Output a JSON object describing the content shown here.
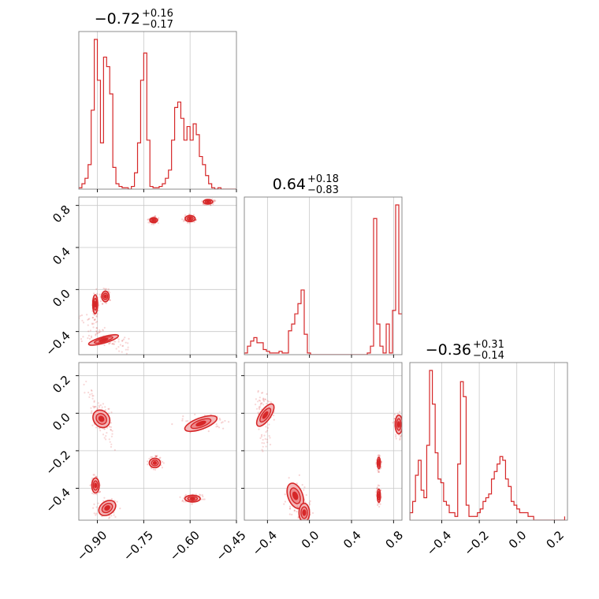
{
  "chart_data": {
    "type": "corner",
    "colors": {
      "line": "#d62728",
      "fill": "#f4b6b8",
      "grid": "#c8c8c8",
      "frame": "#808080"
    },
    "grid": true,
    "titles": [
      {
        "main": "−0.72",
        "sup": "+0.16",
        "sub": "−0.17"
      },
      {
        "main": "0.64",
        "sup": "+0.18",
        "sub": "−0.83"
      },
      {
        "main": "−0.36",
        "sup": "+0.31",
        "sub": "−0.14"
      }
    ],
    "axes": [
      {
        "range": [
          -0.96,
          -0.45
        ],
        "ticks": [
          -0.9,
          -0.75,
          -0.6,
          -0.45
        ],
        "tick_labels": [
          "−0.90",
          "−0.75",
          "−0.60",
          "−0.45"
        ]
      },
      {
        "range": [
          -0.62,
          0.88
        ],
        "ticks": [
          -0.4,
          0.0,
          0.4,
          0.8
        ],
        "tick_labels": [
          "−0.4",
          "0.0",
          "0.4",
          "0.8"
        ]
      },
      {
        "range": [
          -0.57,
          0.27
        ],
        "ticks": [
          -0.4,
          -0.2,
          0.0,
          0.2
        ],
        "tick_labels": [
          "−0.4",
          "−0.2",
          "0.0",
          "0.2"
        ]
      }
    ],
    "histograms": [
      {
        "var": 0,
        "edges": [
          -0.96,
          -0.95,
          -0.94,
          -0.93,
          -0.92,
          -0.91,
          -0.9,
          -0.89,
          -0.88,
          -0.87,
          -0.86,
          -0.85,
          -0.84,
          -0.83,
          -0.82,
          -0.81,
          -0.8,
          -0.79,
          -0.78,
          -0.77,
          -0.76,
          -0.75,
          -0.74,
          -0.73,
          -0.72,
          -0.71,
          -0.7,
          -0.69,
          -0.68,
          -0.67,
          -0.66,
          -0.65,
          -0.64,
          -0.63,
          -0.62,
          -0.61,
          -0.6,
          -0.59,
          -0.58,
          -0.57,
          -0.56,
          -0.55,
          -0.54,
          -0.53,
          -0.52,
          -0.51,
          -0.5,
          -0.49,
          -0.48,
          -0.47,
          -0.46,
          -0.45
        ],
        "counts": [
          1,
          4,
          8,
          18,
          58,
          110,
          80,
          34,
          97,
          90,
          70,
          16,
          4,
          2,
          1,
          1,
          0,
          2,
          12,
          34,
          80,
          100,
          36,
          2,
          1,
          1,
          2,
          4,
          8,
          14,
          36,
          60,
          64,
          52,
          36,
          46,
          36,
          48,
          40,
          24,
          18,
          10,
          4,
          1,
          0,
          1,
          0,
          0,
          0,
          0,
          0
        ]
      },
      {
        "var": 1,
        "edges": [
          -0.62,
          -0.59,
          -0.56,
          -0.53,
          -0.5,
          -0.47,
          -0.44,
          -0.41,
          -0.38,
          -0.35,
          -0.32,
          -0.29,
          -0.26,
          -0.23,
          -0.2,
          -0.17,
          -0.14,
          -0.11,
          -0.08,
          -0.05,
          -0.02,
          0.01,
          0.04,
          0.07,
          0.1,
          0.13,
          0.16,
          0.19,
          0.22,
          0.25,
          0.28,
          0.31,
          0.34,
          0.37,
          0.4,
          0.43,
          0.46,
          0.49,
          0.52,
          0.55,
          0.58,
          0.61,
          0.64,
          0.67,
          0.7,
          0.73,
          0.76,
          0.79,
          0.82,
          0.85,
          0.88
        ],
        "counts": [
          1,
          5,
          8,
          10,
          7,
          7,
          3,
          2,
          1,
          1,
          1,
          2,
          1,
          1,
          14,
          18,
          24,
          30,
          38,
          12,
          1,
          0,
          0,
          0,
          0,
          0,
          0,
          0,
          0,
          0,
          0,
          0,
          0,
          0,
          0,
          0,
          0,
          0,
          0,
          1,
          5,
          80,
          18,
          5,
          1,
          18,
          1,
          26,
          88,
          24
        ]
      },
      {
        "var": 2,
        "edges": [
          -0.57,
          -0.555,
          -0.54,
          -0.525,
          -0.51,
          -0.495,
          -0.48,
          -0.465,
          -0.45,
          -0.435,
          -0.42,
          -0.405,
          -0.39,
          -0.375,
          -0.36,
          -0.345,
          -0.33,
          -0.315,
          -0.3,
          -0.285,
          -0.27,
          -0.255,
          -0.24,
          -0.225,
          -0.21,
          -0.195,
          -0.18,
          -0.165,
          -0.15,
          -0.135,
          -0.12,
          -0.105,
          -0.09,
          -0.075,
          -0.06,
          -0.045,
          -0.03,
          -0.015,
          0.0,
          0.015,
          0.03,
          0.045,
          0.06,
          0.075,
          0.09,
          0.105,
          0.12,
          0.135,
          0.15,
          0.165,
          0.18,
          0.195,
          0.21,
          0.225,
          0.24,
          0.255
        ],
        "counts": [
          2,
          5,
          12,
          16,
          8,
          6,
          20,
          40,
          31,
          18,
          11,
          10,
          5,
          4,
          2,
          2,
          1,
          15,
          37,
          33,
          4,
          1,
          1,
          1,
          2,
          3,
          5,
          6,
          7,
          11,
          13,
          15,
          17,
          16,
          11,
          9,
          5,
          4,
          3,
          2,
          2,
          2,
          1,
          1,
          0,
          0,
          0,
          0,
          0,
          0,
          0,
          0,
          0,
          0,
          0,
          1
        ]
      }
    ],
    "scatter_panels": [
      {
        "x_var": 0,
        "y_var": 1,
        "clusters": [
          {
            "x": -0.907,
            "y": -0.14,
            "rx": 0.008,
            "ry": 0.09,
            "rot": 0
          },
          {
            "x": -0.874,
            "y": -0.066,
            "rx": 0.012,
            "ry": 0.05,
            "rot": 0
          },
          {
            "x": -0.718,
            "y": 0.66,
            "rx": 0.012,
            "ry": 0.025,
            "rot": 0
          },
          {
            "x": -0.6,
            "y": 0.675,
            "rx": 0.016,
            "ry": 0.03,
            "rot": 0
          },
          {
            "x": -0.542,
            "y": 0.835,
            "rx": 0.015,
            "ry": 0.022,
            "rot": 0
          },
          {
            "x": -0.88,
            "y": -0.48,
            "rx": 0.05,
            "ry": 0.03,
            "rot": 16
          }
        ],
        "streak": {
          "from": [
            -0.95,
            -0.28
          ],
          "to": [
            -0.8,
            -0.59
          ]
        }
      },
      {
        "x_var": 0,
        "y_var": 2,
        "clusters": [
          {
            "x": -0.887,
            "y": -0.03,
            "rx": 0.025,
            "ry": 0.05,
            "rot": 40
          },
          {
            "x": -0.906,
            "y": -0.385,
            "rx": 0.012,
            "ry": 0.04,
            "rot": 0
          },
          {
            "x": -0.868,
            "y": -0.505,
            "rx": 0.03,
            "ry": 0.035,
            "rot": 35
          },
          {
            "x": -0.714,
            "y": -0.265,
            "rx": 0.018,
            "ry": 0.025,
            "rot": 0
          },
          {
            "x": -0.592,
            "y": -0.455,
            "rx": 0.025,
            "ry": 0.018,
            "rot": 0
          },
          {
            "x": -0.565,
            "y": -0.055,
            "rx": 0.055,
            "ry": 0.03,
            "rot": 20
          }
        ],
        "streak": {
          "from": [
            -0.94,
            0.15
          ],
          "to": [
            -0.84,
            -0.2
          ]
        }
      },
      {
        "x_var": 1,
        "y_var": 2,
        "clusters": [
          {
            "x": -0.42,
            "y": -0.01,
            "rx": 0.05,
            "ry": 0.07,
            "rot": -35
          },
          {
            "x": -0.135,
            "y": -0.44,
            "rx": 0.07,
            "ry": 0.07,
            "rot": 20
          },
          {
            "x": -0.05,
            "y": -0.53,
            "rx": 0.05,
            "ry": 0.05,
            "rot": 0
          },
          {
            "x": 0.66,
            "y": -0.265,
            "rx": 0.015,
            "ry": 0.03,
            "rot": 0
          },
          {
            "x": 0.66,
            "y": -0.44,
            "rx": 0.015,
            "ry": 0.035,
            "rot": 0
          },
          {
            "x": 0.85,
            "y": -0.06,
            "rx": 0.035,
            "ry": 0.05,
            "rot": 0
          }
        ],
        "streak": {
          "from": [
            -0.48,
            0.12
          ],
          "to": [
            -0.4,
            -0.18
          ]
        }
      }
    ]
  }
}
